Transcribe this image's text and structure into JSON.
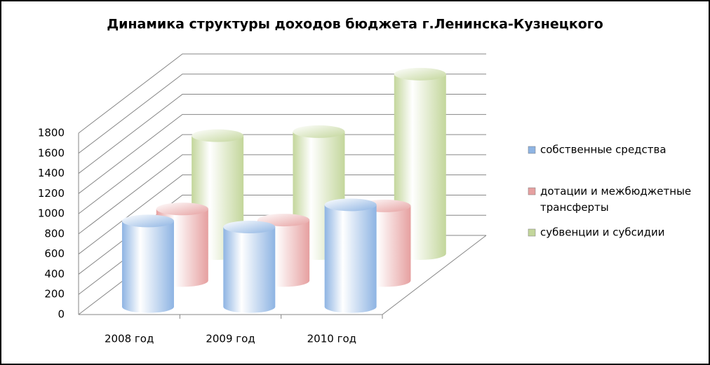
{
  "chart_data": {
    "type": "bar3d",
    "title": "Динамика структуры доходов бюджета г.Ленинска-Кузнецкого",
    "categories": [
      "2008 год",
      "2009 год",
      "2010 год"
    ],
    "series": [
      {
        "name": "собственные средства",
        "color": "#8eb4e3",
        "values": [
          850,
          790,
          1010
        ]
      },
      {
        "name": "дотации и межбюджетные трансферты",
        "color": "#e6a0a0",
        "values": [
          710,
          600,
          740
        ]
      },
      {
        "name": "субвенции и субсидии",
        "color": "#c3d69b",
        "values": [
          1170,
          1210,
          1780
        ]
      }
    ],
    "ylim": [
      0,
      1800
    ],
    "yticks": [
      0,
      200,
      400,
      600,
      800,
      1000,
      1200,
      1400,
      1600,
      1800
    ],
    "grid": true,
    "legend": "right"
  }
}
